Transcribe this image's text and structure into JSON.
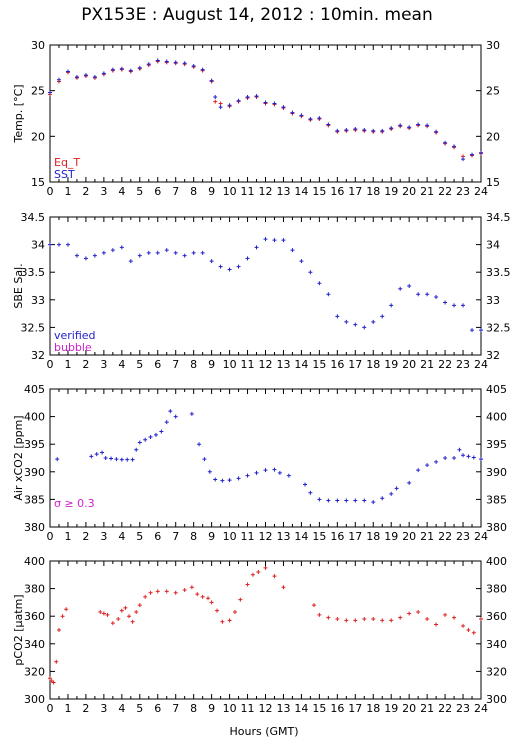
{
  "title": "PX153E : August 14, 2012 : 10min. mean",
  "xlabel": "Hours (GMT)",
  "colors": {
    "red": "#dd2222",
    "blue": "#2222cc",
    "magenta": "#cc22cc"
  },
  "chart_data": [
    {
      "type": "scatter",
      "ylabel": "Temp. [°C]",
      "ylim": [
        15,
        30
      ],
      "yticks": [
        15,
        20,
        25,
        30
      ],
      "xlim": [
        0,
        24
      ],
      "xticks": [
        0,
        1,
        2,
        3,
        4,
        5,
        6,
        7,
        8,
        9,
        10,
        11,
        12,
        13,
        14,
        15,
        16,
        17,
        18,
        19,
        20,
        21,
        22,
        23,
        24
      ],
      "legend": [
        {
          "name": "Eq_T",
          "color": "#dd2222"
        },
        {
          "name": "SST",
          "color": "#2222cc"
        }
      ],
      "series": [
        {
          "name": "Eq_T",
          "color": "#dd2222",
          "x": [
            0,
            0.5,
            1,
            1.5,
            2,
            2.5,
            3,
            3.5,
            4,
            4.5,
            5,
            5.5,
            6,
            6.5,
            7,
            7.5,
            8,
            8.5,
            9,
            9.2,
            9.5,
            10,
            10.5,
            11,
            11.5,
            12,
            12.5,
            13,
            13.5,
            14,
            14.5,
            15,
            15.5,
            16,
            16.5,
            17,
            17.5,
            18,
            18.5,
            19,
            19.5,
            20,
            20.5,
            21,
            21.5,
            22,
            22.5,
            23,
            23.5,
            24
          ],
          "y": [
            24.6,
            26,
            27,
            26.4,
            26.6,
            26.4,
            26.8,
            27.2,
            27.3,
            27.1,
            27.4,
            27.8,
            28.2,
            28.1,
            28,
            27.9,
            27.6,
            27.2,
            26,
            23.8,
            23.6,
            23.3,
            23.8,
            24.2,
            24.3,
            23.6,
            23.5,
            23.1,
            22.5,
            22.2,
            21.8,
            21.9,
            21.2,
            20.5,
            20.6,
            20.7,
            20.6,
            20.5,
            20.5,
            20.8,
            21.1,
            20.9,
            21.2,
            21.1,
            20.4,
            19.2,
            18.8,
            17.8,
            17.9,
            18.1
          ]
        },
        {
          "name": "SST",
          "color": "#2222cc",
          "x": [
            0,
            0.5,
            1,
            1.5,
            2,
            2.5,
            3,
            3.5,
            4,
            4.5,
            5,
            5.5,
            6,
            6.5,
            7,
            7.5,
            8,
            8.5,
            9,
            9.2,
            9.5,
            10,
            10.5,
            11,
            11.5,
            12,
            12.5,
            13,
            13.5,
            14,
            14.5,
            15,
            15.5,
            16,
            16.5,
            17,
            17.5,
            18,
            18.5,
            19,
            19.5,
            20,
            20.5,
            21,
            21.5,
            22,
            22.5,
            23,
            23.5,
            24
          ],
          "y": [
            24.8,
            26.2,
            27.1,
            26.5,
            26.7,
            26.5,
            26.9,
            27.3,
            27.4,
            27.2,
            27.5,
            27.9,
            28.3,
            28.2,
            28.1,
            28,
            27.7,
            27.3,
            26.1,
            24.3,
            23.2,
            23.4,
            23.9,
            24.3,
            24.4,
            23.7,
            23.6,
            23.2,
            22.6,
            22.3,
            21.9,
            22,
            21.3,
            20.6,
            20.7,
            20.8,
            20.7,
            20.6,
            20.6,
            20.9,
            21.2,
            21,
            21.3,
            21.2,
            20.5,
            19.3,
            18.9,
            17.5,
            18,
            18.2
          ]
        }
      ]
    },
    {
      "type": "scatter",
      "ylabel": "SBE Sal.",
      "ylim": [
        32,
        34.5
      ],
      "yticks": [
        32,
        32.5,
        33,
        33.5,
        34,
        34.5
      ],
      "xlim": [
        0,
        24
      ],
      "xticks": [
        0,
        1,
        2,
        3,
        4,
        5,
        6,
        7,
        8,
        9,
        10,
        11,
        12,
        13,
        14,
        15,
        16,
        17,
        18,
        19,
        20,
        21,
        22,
        23,
        24
      ],
      "legend": [
        {
          "name": "verified",
          "color": "#2222cc"
        },
        {
          "name": "bubble",
          "color": "#cc22cc"
        }
      ],
      "series": [
        {
          "name": "verified",
          "color": "#2222cc",
          "x": [
            0,
            0.5,
            1,
            1.5,
            2,
            2.5,
            3,
            3.5,
            4,
            4.5,
            5,
            5.5,
            6,
            6.5,
            7,
            7.5,
            8,
            8.5,
            9,
            9.5,
            10,
            10.5,
            11,
            11.5,
            12,
            12.5,
            13,
            13.5,
            14,
            14.5,
            15,
            15.5,
            16,
            16.5,
            17,
            17.5,
            18,
            18.5,
            19,
            19.5,
            20,
            20.5,
            21,
            21.5,
            22,
            22.5,
            23,
            23.5,
            24
          ],
          "y": [
            34,
            34,
            34,
            33.8,
            33.75,
            33.8,
            33.85,
            33.9,
            33.95,
            33.7,
            33.8,
            33.85,
            33.85,
            33.9,
            33.85,
            33.8,
            33.85,
            33.85,
            33.7,
            33.6,
            33.55,
            33.6,
            33.75,
            33.95,
            34.1,
            34.08,
            34.08,
            33.9,
            33.7,
            33.5,
            33.3,
            33.1,
            32.7,
            32.6,
            32.55,
            32.5,
            32.6,
            32.7,
            32.9,
            33.2,
            33.25,
            33.1,
            33.1,
            33.05,
            32.95,
            32.9,
            32.9,
            32.45,
            32.45
          ]
        }
      ]
    },
    {
      "type": "scatter",
      "ylabel": "Air xCO2 [ppm]",
      "ylim": [
        380,
        405
      ],
      "yticks": [
        380,
        385,
        390,
        395,
        400,
        405
      ],
      "xlim": [
        0,
        24
      ],
      "xticks": [
        0,
        1,
        2,
        3,
        4,
        5,
        6,
        7,
        8,
        9,
        10,
        11,
        12,
        13,
        14,
        15,
        16,
        17,
        18,
        19,
        20,
        21,
        22,
        23,
        24
      ],
      "annotation": "σ ≥ 0.3",
      "series": [
        {
          "name": "",
          "color": "#2222cc",
          "x": [
            0.4,
            2.3,
            2.6,
            2.9,
            3.1,
            3.4,
            3.7,
            4,
            4.3,
            4.6,
            4.8,
            5,
            5.3,
            5.6,
            5.9,
            6.2,
            6.5,
            6.7,
            7,
            7.9,
            8.3,
            8.6,
            8.9,
            9.2,
            9.6,
            10,
            10.5,
            11,
            11.5,
            12,
            12.5,
            12.8,
            13.3,
            14.2,
            14.5,
            15,
            15.5,
            16,
            16.5,
            17,
            17.5,
            18,
            18.5,
            19,
            19.3,
            20,
            20.5,
            21,
            21.5,
            22,
            22.5,
            22.8,
            23,
            23.3,
            23.6,
            24
          ],
          "y": [
            392.3,
            392.8,
            393.2,
            393.5,
            392.5,
            392.4,
            392.3,
            392.2,
            392.2,
            392.2,
            394,
            395.3,
            395.8,
            396.3,
            396.7,
            397.3,
            399,
            401,
            400,
            400.5,
            395,
            392.3,
            390,
            388.6,
            388.4,
            388.5,
            388.8,
            389.3,
            389.8,
            390.3,
            390.4,
            389.8,
            389.3,
            387.7,
            386.2,
            385,
            384.8,
            384.8,
            384.8,
            384.8,
            384.8,
            384.5,
            385.2,
            386,
            387,
            388,
            390.3,
            391.2,
            391.8,
            392.5,
            392.5,
            394,
            393,
            392.8,
            392.6,
            392.3
          ]
        }
      ]
    },
    {
      "type": "scatter",
      "ylabel": "pCO2 [µatm]",
      "ylim": [
        300,
        400
      ],
      "yticks": [
        300,
        320,
        340,
        360,
        380,
        400
      ],
      "xlim": [
        0,
        24
      ],
      "xticks": [
        0,
        1,
        2,
        3,
        4,
        5,
        6,
        7,
        8,
        9,
        10,
        11,
        12,
        13,
        14,
        15,
        16,
        17,
        18,
        19,
        20,
        21,
        22,
        23,
        24
      ],
      "series": [
        {
          "name": "",
          "color": "#dd2222",
          "x": [
            0,
            0.1,
            0.2,
            0.35,
            0.5,
            0.7,
            0.9,
            2.8,
            3,
            3.2,
            3.5,
            3.8,
            4,
            4.2,
            4.4,
            4.6,
            4.8,
            5,
            5.3,
            5.6,
            6,
            6.5,
            7,
            7.5,
            7.9,
            8.2,
            8.5,
            8.8,
            9,
            9.3,
            9.6,
            10,
            10.3,
            10.6,
            11,
            11.3,
            11.6,
            12,
            12.5,
            13,
            14.7,
            15,
            15.5,
            16,
            16.5,
            17,
            17.5,
            18,
            18.5,
            19,
            19.5,
            20,
            20.5,
            21,
            21.5,
            22,
            22.5,
            23,
            23.3,
            23.6,
            24
          ],
          "y": [
            315,
            313,
            312,
            327,
            350,
            360,
            365,
            363,
            362,
            361,
            355,
            358,
            364,
            366,
            360,
            356,
            363,
            368,
            374,
            377,
            378,
            378,
            377,
            379,
            381,
            376,
            374,
            373,
            370,
            364,
            356,
            357,
            363,
            372,
            383,
            390,
            392,
            395,
            389,
            381,
            368,
            361,
            359,
            358,
            357,
            357,
            358,
            358,
            357,
            357,
            359,
            362,
            363,
            358,
            354,
            361,
            359,
            353,
            350,
            348,
            358
          ]
        }
      ]
    }
  ]
}
